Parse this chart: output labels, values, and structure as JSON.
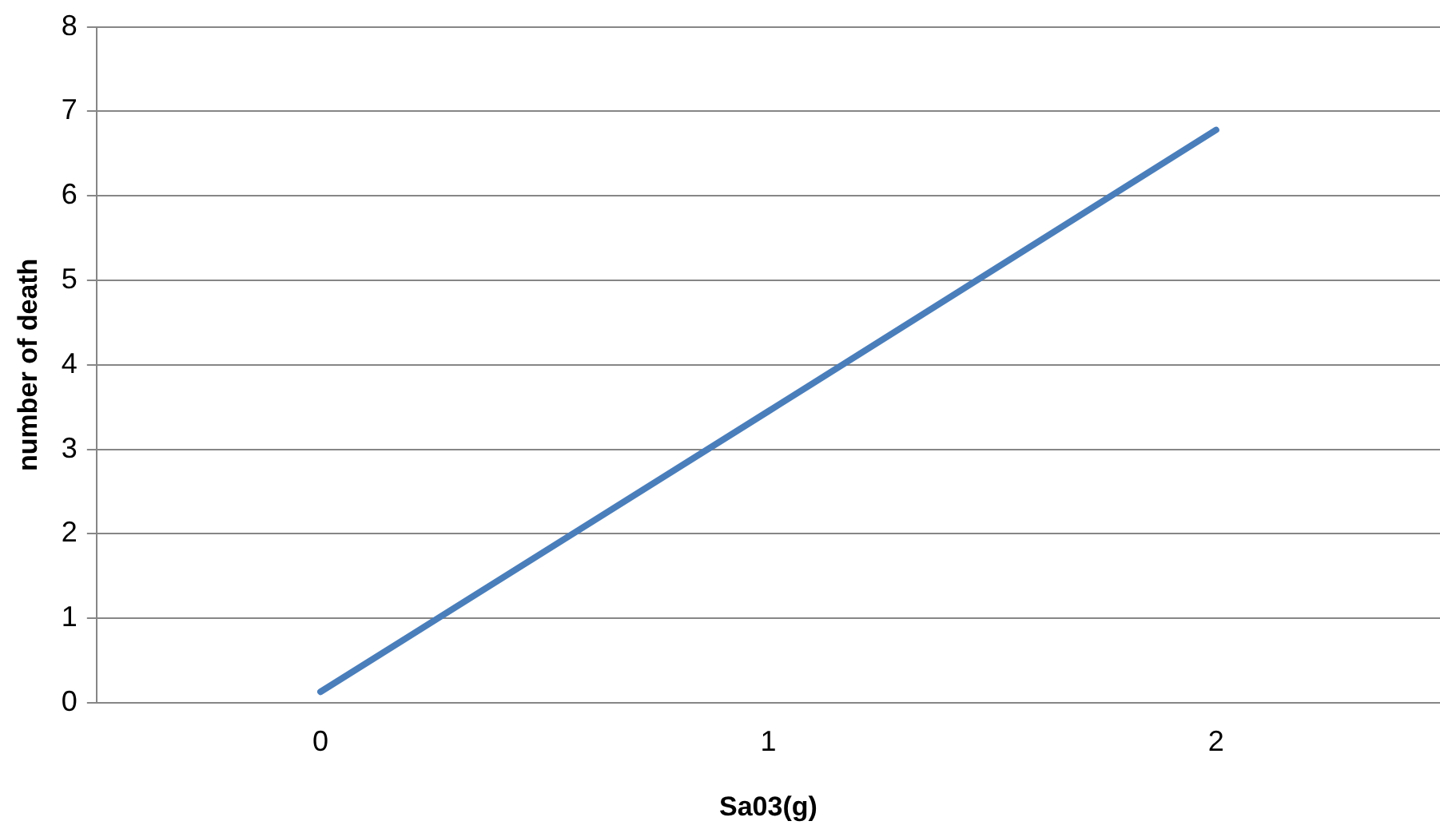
{
  "chart_data": {
    "type": "line",
    "xlabel": "Sa03(g)",
    "ylabel": "number of death",
    "categories": [
      "0",
      "1",
      "2"
    ],
    "series": [
      {
        "color": "#4a7ebb",
        "values": [
          0.13,
          3.45,
          6.78
        ]
      }
    ],
    "ylim": [
      0,
      8
    ],
    "yticks": [
      0,
      1,
      2,
      3,
      4,
      5,
      6,
      7,
      8
    ],
    "grid": "y",
    "legend": false,
    "marker": "none",
    "line_style": "solid"
  }
}
